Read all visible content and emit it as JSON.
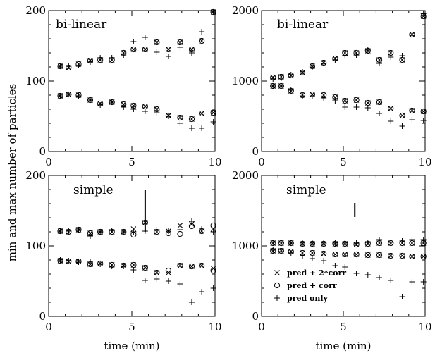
{
  "figure": {
    "ylabel": "min and max number of particles",
    "xlabel": "time (min)"
  },
  "legend": [
    {
      "marker": "x",
      "label": "pred + 2*corr"
    },
    {
      "marker": "o",
      "label": "pred + corr"
    },
    {
      "marker": "+",
      "label": "pred only"
    }
  ],
  "chart_data": [
    {
      "type": "scatter",
      "panel": "top-left",
      "annotation": "bi-linear",
      "xlim": [
        0,
        10
      ],
      "ylim": [
        0,
        200
      ],
      "xticks": [
        "0",
        "5",
        "10"
      ],
      "yticks": [
        "0",
        "100",
        "200"
      ],
      "x": [
        0.7,
        1.2,
        1.8,
        2.5,
        3.1,
        3.8,
        4.5,
        5.1,
        5.8,
        6.5,
        7.2,
        7.9,
        8.6,
        9.2,
        9.9
      ],
      "series": [
        {
          "name": "pred + 2*corr",
          "marker": "x",
          "upper": [
            121,
            119,
            124,
            129,
            130,
            130,
            140,
            145,
            145,
            155,
            145,
            155,
            145,
            157,
            198
          ],
          "lower": [
            79,
            81,
            80,
            73,
            68,
            70,
            67,
            65,
            64,
            60,
            51,
            48,
            46,
            54,
            55
          ]
        },
        {
          "name": "pred + corr",
          "marker": "o",
          "upper": [
            121,
            119,
            124,
            129,
            130,
            130,
            140,
            145,
            145,
            155,
            145,
            155,
            145,
            157,
            198
          ],
          "lower": [
            79,
            81,
            80,
            73,
            68,
            70,
            67,
            65,
            64,
            60,
            51,
            48,
            46,
            54,
            55
          ]
        },
        {
          "name": "pred only",
          "marker": "+",
          "upper": [
            121,
            121,
            122,
            127,
            133,
            133,
            137,
            156,
            162,
            141,
            135,
            148,
            140,
            170,
            198
          ],
          "lower": [
            79,
            81,
            79,
            73,
            66,
            70,
            63,
            60,
            57,
            55,
            50,
            40,
            33,
            33,
            42
          ]
        }
      ]
    },
    {
      "type": "scatter",
      "panel": "top-right",
      "annotation": "bi-linear",
      "xlim": [
        0,
        10
      ],
      "ylim": [
        0,
        2000
      ],
      "xticks": [
        "0",
        "5",
        "10"
      ],
      "yticks": [
        "0",
        "1000",
        "2000"
      ],
      "x": [
        0.7,
        1.2,
        1.8,
        2.5,
        3.1,
        3.8,
        4.5,
        5.1,
        5.8,
        6.5,
        7.2,
        7.9,
        8.6,
        9.2,
        9.9
      ],
      "series": [
        {
          "name": "pred + 2*corr",
          "marker": "x",
          "upper": [
            1050,
            1060,
            1080,
            1120,
            1210,
            1260,
            1320,
            1400,
            1400,
            1430,
            1300,
            1400,
            1300,
            1660,
            1920
          ],
          "lower": [
            930,
            930,
            860,
            800,
            810,
            800,
            770,
            720,
            730,
            690,
            700,
            610,
            510,
            580,
            570
          ]
        },
        {
          "name": "pred + corr",
          "marker": "o",
          "upper": [
            1050,
            1060,
            1080,
            1120,
            1210,
            1260,
            1320,
            1400,
            1400,
            1430,
            1300,
            1400,
            1300,
            1660,
            1920
          ],
          "lower": [
            930,
            930,
            860,
            800,
            810,
            800,
            770,
            720,
            730,
            690,
            700,
            610,
            510,
            580,
            570
          ]
        },
        {
          "name": "pred only",
          "marker": "+",
          "upper": [
            1030,
            1040,
            1090,
            1130,
            1200,
            1250,
            1300,
            1360,
            1370,
            1440,
            1250,
            1340,
            1360,
            1650,
            1960
          ],
          "lower": [
            930,
            930,
            870,
            790,
            780,
            760,
            720,
            630,
            630,
            620,
            540,
            430,
            360,
            450,
            440
          ]
        }
      ]
    },
    {
      "type": "scatter",
      "panel": "bottom-left",
      "annotation": "simple",
      "xlim": [
        0,
        10
      ],
      "ylim": [
        0,
        200
      ],
      "xticks": [
        "0",
        "5",
        "10"
      ],
      "yticks": [
        "0",
        "100",
        "200"
      ],
      "x": [
        0.7,
        1.2,
        1.8,
        2.5,
        3.1,
        3.8,
        4.5,
        5.1,
        5.8,
        6.5,
        7.2,
        7.9,
        8.6,
        9.2,
        9.9
      ],
      "errorbar": {
        "x": 5.8,
        "y": [
          120,
          180
        ]
      },
      "series": [
        {
          "name": "pred + 2*corr",
          "marker": "x",
          "upper": [
            121,
            120,
            123,
            118,
            120,
            120,
            120,
            124,
            133,
            120,
            121,
            129,
            131,
            121,
            124
          ],
          "lower": [
            79,
            78,
            78,
            74,
            75,
            73,
            72,
            73,
            69,
            62,
            62,
            72,
            71,
            72,
            68
          ]
        },
        {
          "name": "pred + corr",
          "marker": "o",
          "upper": [
            121,
            120,
            123,
            118,
            120,
            120,
            120,
            116,
            133,
            120,
            118,
            117,
            128,
            121,
            129
          ],
          "lower": [
            79,
            78,
            78,
            74,
            75,
            73,
            72,
            73,
            69,
            62,
            65,
            72,
            71,
            72,
            65
          ]
        },
        {
          "name": "pred only",
          "marker": "+",
          "upper": [
            121,
            121,
            123,
            114,
            120,
            122,
            120,
            120,
            121,
            123,
            121,
            123,
            135,
            124,
            120
          ],
          "lower": [
            80,
            79,
            77,
            77,
            74,
            71,
            71,
            66,
            51,
            53,
            50,
            46,
            20,
            35,
            40
          ]
        }
      ]
    },
    {
      "type": "scatter",
      "panel": "bottom-right",
      "annotation": "simple",
      "xlim": [
        0,
        10
      ],
      "ylim": [
        0,
        2000
      ],
      "xticks": [
        "0",
        "5",
        "10"
      ],
      "yticks": [
        "0",
        "1000",
        "2000"
      ],
      "x": [
        0.7,
        1.2,
        1.8,
        2.5,
        3.1,
        3.8,
        4.5,
        5.1,
        5.8,
        6.5,
        7.2,
        7.9,
        8.6,
        9.2,
        9.9
      ],
      "errorbar": {
        "x": 5.7,
        "y": [
          1410,
          1610
        ]
      },
      "series": [
        {
          "name": "pred + 2*corr",
          "marker": "x",
          "upper": [
            1040,
            1040,
            1040,
            1030,
            1030,
            1030,
            1030,
            1030,
            1020,
            1030,
            1040,
            1040,
            1040,
            1040,
            1040
          ],
          "lower": [
            930,
            930,
            920,
            900,
            900,
            890,
            880,
            880,
            880,
            870,
            870,
            860,
            860,
            850,
            850
          ]
        },
        {
          "name": "pred + corr",
          "marker": "o",
          "upper": [
            1040,
            1040,
            1040,
            1030,
            1030,
            1030,
            1030,
            1030,
            1020,
            1030,
            1040,
            1040,
            1040,
            1040,
            1040
          ],
          "lower": [
            930,
            930,
            920,
            900,
            900,
            890,
            880,
            880,
            880,
            870,
            870,
            860,
            860,
            850,
            850
          ]
        },
        {
          "name": "pred only",
          "marker": "+",
          "upper": [
            1050,
            1050,
            1040,
            1040,
            1040,
            1040,
            1040,
            1040,
            1040,
            1050,
            1090,
            1050,
            1070,
            1090,
            1090
          ],
          "lower": [
            940,
            920,
            900,
            860,
            820,
            790,
            720,
            700,
            610,
            590,
            550,
            510,
            280,
            490,
            490
          ]
        }
      ]
    }
  ]
}
